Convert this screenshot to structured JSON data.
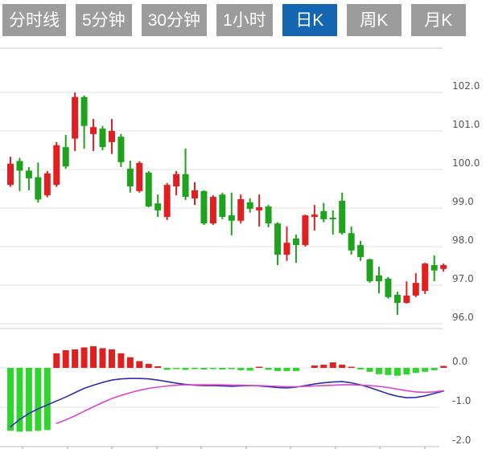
{
  "toolbar": {
    "tabs": [
      {
        "label": "分时线",
        "active": false
      },
      {
        "label": "5分钟",
        "active": false
      },
      {
        "label": "30分钟",
        "active": false
      },
      {
        "label": "1小时",
        "active": false
      },
      {
        "label": "日K",
        "active": true
      },
      {
        "label": "周K",
        "active": false
      },
      {
        "label": "月K",
        "active": false
      }
    ],
    "active_bg": "#1566b0",
    "inactive_bg": "#9c9c9c",
    "tab_text_color": "#ffffff"
  },
  "chart_data": {
    "type": "candlestick",
    "title": "",
    "legend_position": "none",
    "grid": true,
    "price_axis": {
      "labels": [
        "102.0",
        "101.0",
        "100.0",
        "99.0",
        "98.0",
        "97.0",
        "96.0"
      ],
      "values": [
        102.0,
        101.0,
        100.0,
        99.0,
        98.0,
        97.0,
        96.0
      ],
      "range": [
        96.0,
        102.0
      ]
    },
    "candles_ohlc": [
      [
        99.6,
        100.33,
        99.55,
        100.15
      ],
      [
        100.22,
        100.3,
        99.44,
        99.97
      ],
      [
        99.97,
        100.06,
        99.46,
        99.77
      ],
      [
        99.8,
        100.18,
        99.14,
        99.22
      ],
      [
        99.33,
        99.96,
        99.28,
        99.9
      ],
      [
        99.6,
        100.71,
        99.55,
        100.63
      ],
      [
        100.58,
        100.9,
        100.02,
        100.08
      ],
      [
        100.8,
        102.0,
        100.48,
        101.88
      ],
      [
        101.88,
        101.92,
        100.54,
        101.13
      ],
      [
        100.92,
        101.31,
        100.48,
        101.1
      ],
      [
        101.06,
        101.13,
        100.5,
        100.58
      ],
      [
        100.71,
        101.31,
        100.4,
        101.0
      ],
      [
        100.85,
        100.92,
        100.06,
        100.19
      ],
      [
        100.02,
        100.23,
        99.4,
        99.56
      ],
      [
        99.44,
        100.21,
        99.4,
        100.17
      ],
      [
        99.92,
        99.96,
        99.02,
        99.04
      ],
      [
        99.12,
        99.35,
        98.77,
        98.94
      ],
      [
        98.77,
        99.65,
        98.69,
        99.6
      ],
      [
        99.56,
        99.96,
        99.33,
        99.88
      ],
      [
        99.88,
        100.54,
        99.21,
        99.29
      ],
      [
        99.25,
        99.67,
        99.08,
        99.46
      ],
      [
        99.44,
        99.46,
        98.56,
        98.6
      ],
      [
        98.6,
        99.33,
        98.56,
        99.29
      ],
      [
        99.35,
        99.4,
        98.71,
        98.77
      ],
      [
        98.81,
        99.4,
        98.29,
        98.67
      ],
      [
        98.67,
        99.35,
        98.6,
        99.23
      ],
      [
        99.15,
        99.25,
        98.88,
        98.98
      ],
      [
        98.94,
        99.35,
        98.52,
        99.02
      ],
      [
        99.04,
        99.08,
        98.5,
        98.6
      ],
      [
        98.6,
        98.63,
        97.52,
        97.79
      ],
      [
        97.79,
        98.52,
        97.63,
        98.1
      ],
      [
        98.21,
        98.31,
        97.58,
        98.04
      ],
      [
        98.04,
        98.83,
        98.0,
        98.81
      ],
      [
        98.77,
        99.08,
        98.42,
        98.83
      ],
      [
        98.92,
        99.13,
        98.63,
        98.71
      ],
      [
        98.75,
        98.94,
        98.31,
        98.73
      ],
      [
        99.19,
        99.4,
        98.31,
        98.35
      ],
      [
        98.35,
        98.52,
        97.79,
        97.9
      ],
      [
        98.04,
        98.15,
        97.63,
        97.73
      ],
      [
        97.67,
        97.69,
        97.06,
        97.1
      ],
      [
        97.25,
        97.48,
        96.79,
        97.1
      ],
      [
        97.17,
        97.21,
        96.65,
        96.69
      ],
      [
        96.75,
        96.83,
        96.23,
        96.54
      ],
      [
        96.54,
        97.1,
        96.52,
        96.73
      ],
      [
        96.73,
        97.31,
        96.69,
        97.06
      ],
      [
        96.85,
        97.58,
        96.77,
        97.56
      ],
      [
        97.52,
        97.77,
        97.1,
        97.38
      ],
      [
        97.42,
        97.56,
        97.35,
        97.52
      ]
    ],
    "macd": {
      "axis_labels": [
        "0.0",
        "-1.0",
        "-2.0"
      ],
      "axis_values": [
        0.0,
        -1.0,
        -2.0
      ],
      "histogram": [
        -1.6,
        -1.62,
        -1.61,
        -1.6,
        -1.58,
        0.37,
        0.45,
        0.47,
        0.52,
        0.55,
        0.5,
        0.47,
        0.37,
        0.27,
        0.17,
        0.1,
        0.04,
        -0.05,
        -0.03,
        -0.05,
        -0.02,
        -0.04,
        -0.02,
        -0.04,
        -0.03,
        -0.06,
        -0.07,
        0.03,
        -0.05,
        -0.08,
        -0.08,
        -0.08,
        0.0,
        0.06,
        0.08,
        0.14,
        0.08,
        0.03,
        -0.04,
        -0.1,
        -0.16,
        -0.18,
        -0.2,
        -0.17,
        -0.13,
        -0.1,
        -0.06,
        0.05
      ],
      "dif": [
        -1.5,
        -1.31,
        -1.16,
        -1.04,
        -0.94,
        -0.84,
        -0.74,
        -0.63,
        -0.52,
        -0.44,
        -0.37,
        -0.31,
        -0.28,
        -0.27,
        -0.27,
        -0.28,
        -0.31,
        -0.35,
        -0.39,
        -0.42,
        -0.44,
        -0.45,
        -0.45,
        -0.46,
        -0.47,
        -0.46,
        -0.45,
        -0.46,
        -0.48,
        -0.5,
        -0.51,
        -0.49,
        -0.45,
        -0.41,
        -0.38,
        -0.36,
        -0.35,
        -0.38,
        -0.43,
        -0.5,
        -0.58,
        -0.66,
        -0.72,
        -0.76,
        -0.75,
        -0.71,
        -0.65,
        -0.59
      ],
      "dea": [
        null,
        null,
        null,
        null,
        null,
        -1.41,
        -1.32,
        -1.22,
        -1.1,
        -0.99,
        -0.88,
        -0.78,
        -0.7,
        -0.63,
        -0.57,
        -0.52,
        -0.49,
        -0.46,
        -0.44,
        -0.43,
        -0.43,
        -0.43,
        -0.43,
        -0.43,
        -0.44,
        -0.44,
        -0.45,
        -0.45,
        -0.46,
        -0.47,
        -0.48,
        -0.48,
        -0.47,
        -0.46,
        -0.45,
        -0.44,
        -0.43,
        -0.43,
        -0.44,
        -0.45,
        -0.47,
        -0.5,
        -0.54,
        -0.58,
        -0.61,
        -0.62,
        -0.61,
        -0.58
      ]
    },
    "colors": {
      "up": "#e02020",
      "down": "#1fa31f",
      "hist_positive": "#e02020",
      "hist_negative": "#2fd42f",
      "dif_line": "#2b2fae",
      "dea_line": "#d944c8",
      "grid": "#e2e2e2",
      "separator": "#cccccc",
      "axis_line": "#bbbbbb",
      "tick": "#999999",
      "axis_text": "#555555"
    }
  }
}
